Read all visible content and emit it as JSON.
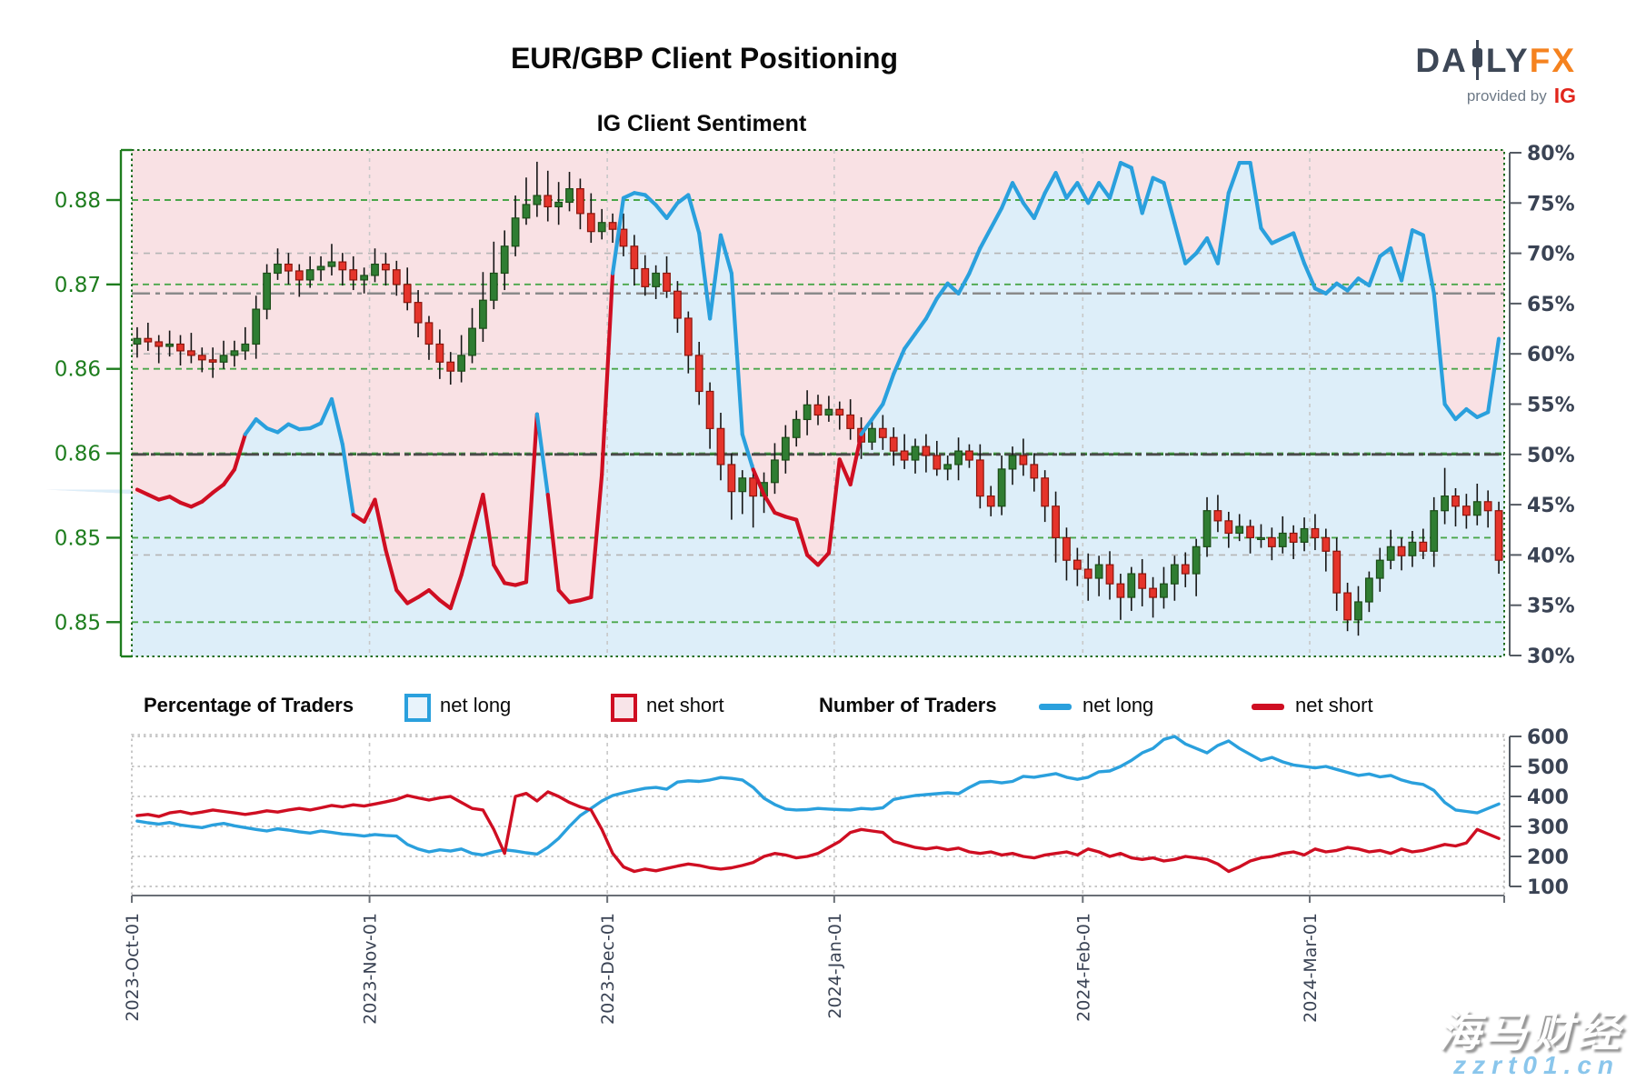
{
  "header": {
    "title": "EUR/GBP Client Positioning",
    "subtitle": "IG Client Sentiment"
  },
  "logo": {
    "part1": "DA",
    "part2": "LY",
    "part3": "FX",
    "provided_by": "provided by",
    "ig": "IG"
  },
  "legend": {
    "pct_title": "Percentage of Traders",
    "num_title": "Number of Traders",
    "long_label": "net long",
    "short_label": "net short"
  },
  "watermark": {
    "line1": "海马财经",
    "line2": "zzrt01.cn"
  },
  "colors": {
    "net_long": "#2aa0dd",
    "net_short": "#cf0e22",
    "bg_above_line_pink": "#f9e1e4",
    "bg_below_line_blue": "#ddeef9",
    "candle_up": "#2f7d32",
    "candle_up_border": "#1b4d17",
    "candle_down": "#e5342b",
    "candle_down_border": "#8c150c",
    "wick": "#151515",
    "price_axis_green": "#1e7d1e",
    "pct_axis_slate": "#3a4354",
    "grid_green": "#4aa64a",
    "grid_gray": "#b5b5b5",
    "ref_dark": "#4a4a4a",
    "ref_gray": "#8a8a8a",
    "logo_slate": "#3d4756",
    "logo_orange": "#f5821f",
    "ig_red": "#e1251b"
  },
  "chart_data": [
    {
      "type": "candlestick+line",
      "title": "IG Client Sentiment",
      "x_axis": {
        "tick_labels": [
          "2023-Oct-01",
          "2023-Nov-01",
          "2023-Dec-01",
          "2024-Jan-01",
          "2024-Feb-01",
          "2024-Mar-01"
        ],
        "tick_day_index": [
          0,
          22,
          44,
          65,
          88,
          109
        ],
        "n_points": 127
      },
      "price_axis": {
        "side": "left",
        "tick_labels": [
          "0.88",
          "0.87",
          "0.86",
          "0.86",
          "0.85",
          "0.85"
        ],
        "tick_values": [
          0.88,
          0.8725,
          0.865,
          0.8575,
          0.85,
          0.8425
        ]
      },
      "pct_axis": {
        "side": "right",
        "tick_values": [
          80,
          75,
          70,
          65,
          60,
          55,
          50,
          45,
          40,
          35,
          30
        ],
        "unit": "%",
        "gray_grid_at": [
          70,
          60,
          40
        ]
      },
      "ref_lines": {
        "pct_50": 50,
        "price_dashdot": 0.8717
      },
      "legend_note": "line colored blue when net-long >= 50%, red when below; area above line pink, below light blue",
      "candles": {
        "first_open": 0.8672,
        "close": [
          0.8677,
          0.8674,
          0.867,
          0.8672,
          0.8666,
          0.8662,
          0.8658,
          0.8656,
          0.8662,
          0.8666,
          0.8672,
          0.8703,
          0.8735,
          0.8743,
          0.8737,
          0.8729,
          0.8738,
          0.8741,
          0.8745,
          0.8738,
          0.8729,
          0.8733,
          0.8743,
          0.8738,
          0.8725,
          0.8709,
          0.8691,
          0.8672,
          0.8656,
          0.8648,
          0.8662,
          0.8686,
          0.8711,
          0.8735,
          0.8759,
          0.8784,
          0.8796,
          0.8804,
          0.8794,
          0.8798,
          0.881,
          0.8788,
          0.8772,
          0.878,
          0.8774,
          0.8759,
          0.8739,
          0.8723,
          0.8735,
          0.8719,
          0.8695,
          0.8662,
          0.863,
          0.8597,
          0.8565,
          0.8541,
          0.8553,
          0.8537,
          0.8549,
          0.8569,
          0.8589,
          0.8605,
          0.8618,
          0.8609,
          0.8614,
          0.8609,
          0.8597,
          0.8585,
          0.8597,
          0.8589,
          0.8577,
          0.8569,
          0.8581,
          0.8573,
          0.8561,
          0.8565,
          0.8577,
          0.8569,
          0.8537,
          0.8528,
          0.8561,
          0.8573,
          0.8565,
          0.8553,
          0.8528,
          0.85,
          0.848,
          0.8472,
          0.8464,
          0.8476,
          0.8459,
          0.8447,
          0.8468,
          0.8455,
          0.8447,
          0.8459,
          0.8476,
          0.8468,
          0.8492,
          0.8524,
          0.8515,
          0.8504,
          0.851,
          0.85,
          0.85,
          0.8492,
          0.8504,
          0.8496,
          0.8508,
          0.85,
          0.8488,
          0.8451,
          0.8427,
          0.8443,
          0.8464,
          0.848,
          0.8492,
          0.8484,
          0.8496,
          0.8488,
          0.8524,
          0.8537,
          0.8528,
          0.852,
          0.8532,
          0.8524,
          0.848
        ],
        "wick_up_e4": [
          10,
          14,
          6,
          12,
          8,
          16,
          7,
          11,
          13,
          9,
          15,
          12,
          8,
          14,
          10,
          6,
          12,
          9,
          16,
          8,
          12,
          7,
          14,
          10,
          8,
          15,
          11,
          6,
          13,
          9,
          18,
          18,
          25,
          28,
          14,
          20,
          24,
          30,
          22,
          18,
          15,
          9,
          18,
          12,
          8,
          14,
          10,
          12,
          7,
          15,
          9,
          6,
          12,
          8,
          14,
          10,
          7,
          12,
          9,
          15,
          11,
          8,
          13,
          9,
          12,
          7,
          14,
          10,
          8,
          12,
          9,
          15,
          7,
          11,
          13,
          8,
          12,
          6,
          14,
          9,
          12,
          8,
          15,
          10,
          7,
          13,
          9,
          11,
          14,
          8,
          12,
          9,
          6,
          13,
          10,
          15,
          8,
          11,
          7,
          12,
          14,
          8,
          11,
          6,
          12,
          9,
          15,
          7,
          10,
          13,
          8,
          12,
          9,
          14,
          6,
          11,
          15,
          8,
          10,
          12,
          12,
          25,
          7,
          11,
          16,
          10,
          8
        ],
        "wick_dn_e4": [
          12,
          8,
          15,
          9,
          13,
          7,
          11,
          14,
          6,
          10,
          8,
          13,
          9,
          6,
          12,
          15,
          7,
          10,
          8,
          14,
          9,
          12,
          6,
          14,
          10,
          7,
          13,
          14,
          15,
          12,
          10,
          7,
          12,
          8,
          15,
          9,
          6,
          11,
          13,
          16,
          8,
          14,
          10,
          7,
          12,
          9,
          15,
          8,
          11,
          6,
          13,
          16,
          12,
          18,
          14,
          25,
          20,
          28,
          15,
          10,
          12,
          8,
          14,
          9,
          6,
          13,
          10,
          15,
          7,
          11,
          13,
          8,
          12,
          15,
          6,
          10,
          14,
          7,
          11,
          9,
          8,
          14,
          10,
          12,
          14,
          22,
          18,
          15,
          20,
          16,
          14,
          20,
          12,
          16,
          18,
          10,
          15,
          12,
          20,
          9,
          10,
          13,
          7,
          14,
          9,
          12,
          6,
          15,
          8,
          11,
          18,
          16,
          10,
          14,
          9,
          12,
          8,
          13,
          10,
          7,
          14,
          12,
          18,
          12,
          9,
          15,
          12
        ]
      },
      "sentiment_net_long_pct": [
        46.5,
        46,
        45.5,
        45.8,
        45.2,
        44.8,
        45.3,
        46.2,
        47,
        48.5,
        52,
        53.5,
        52.6,
        52.2,
        53,
        52.5,
        52.6,
        53.1,
        55.5,
        51,
        44,
        43.3,
        45.5,
        40.5,
        36.5,
        35.2,
        35.8,
        36.5,
        35.5,
        34.7,
        38,
        42,
        46,
        39,
        37.2,
        37,
        37.3,
        54,
        46,
        36.5,
        35.3,
        35.5,
        35.8,
        48,
        68,
        75.5,
        76,
        75.8,
        74.8,
        73.5,
        75,
        75.8,
        72,
        63.5,
        71.8,
        68,
        52,
        48.5,
        46,
        44.2,
        43.8,
        43.5,
        40,
        39,
        40.2,
        49.5,
        47,
        52,
        53.5,
        55,
        58,
        60.5,
        62,
        63.5,
        65.5,
        67,
        66,
        68,
        70.5,
        72.5,
        74.5,
        77,
        75,
        73.5,
        76,
        78,
        75.5,
        77,
        75,
        77,
        75.5,
        79,
        78.5,
        74,
        77.5,
        77,
        73,
        69,
        70,
        71.5,
        69,
        76,
        79,
        79,
        72.5,
        71,
        71.5,
        72,
        69,
        66.5,
        66,
        67,
        66.3,
        67.5,
        66.8,
        69.7,
        70.5,
        67.3,
        72.3,
        71.8,
        66,
        55,
        53.5,
        54.5,
        53.7,
        54.2,
        61.5
      ]
    },
    {
      "type": "line",
      "title": "Number of Traders",
      "x_axis": {
        "tick_labels": [
          "2023-Oct-01",
          "2023-Nov-01",
          "2023-Dec-01",
          "2024-Jan-01",
          "2024-Feb-01",
          "2024-Mar-01"
        ],
        "tick_day_index": [
          0,
          22,
          44,
          65,
          88,
          109
        ],
        "n_points": 127
      },
      "y_axis": {
        "side": "right",
        "tick_values": [
          600,
          500,
          400,
          300,
          200,
          100
        ]
      },
      "series": [
        {
          "name": "net long",
          "color": "#2aa0dd",
          "values": [
            318,
            312,
            308,
            313,
            305,
            300,
            296,
            305,
            310,
            302,
            296,
            290,
            285,
            292,
            288,
            282,
            278,
            285,
            280,
            275,
            272,
            268,
            273,
            270,
            268,
            240,
            225,
            215,
            222,
            218,
            225,
            210,
            205,
            215,
            222,
            218,
            212,
            208,
            230,
            260,
            300,
            336,
            360,
            385,
            403,
            412,
            420,
            427,
            430,
            424,
            448,
            452,
            450,
            455,
            463,
            460,
            455,
            430,
            394,
            373,
            358,
            355,
            356,
            360,
            358,
            356,
            355,
            360,
            358,
            362,
            390,
            397,
            403,
            406,
            409,
            412,
            409,
            430,
            448,
            450,
            445,
            450,
            467,
            464,
            470,
            476,
            464,
            457,
            464,
            482,
            485,
            500,
            520,
            545,
            560,
            590,
            600,
            575,
            560,
            545,
            570,
            585,
            560,
            540,
            520,
            530,
            515,
            505,
            500,
            495,
            500,
            490,
            480,
            470,
            475,
            465,
            470,
            455,
            445,
            440,
            420,
            380,
            355,
            350,
            345,
            360,
            375
          ]
        },
        {
          "name": "net short",
          "color": "#cf0e22",
          "values": [
            336,
            340,
            333,
            345,
            350,
            342,
            348,
            355,
            350,
            345,
            340,
            345,
            352,
            348,
            355,
            360,
            355,
            362,
            370,
            365,
            372,
            368,
            375,
            382,
            390,
            403,
            395,
            388,
            395,
            400,
            380,
            360,
            355,
            290,
            210,
            400,
            410,
            385,
            415,
            400,
            380,
            365,
            355,
            290,
            210,
            165,
            150,
            158,
            152,
            160,
            168,
            175,
            170,
            162,
            158,
            162,
            170,
            180,
            200,
            210,
            205,
            195,
            200,
            210,
            230,
            250,
            280,
            290,
            285,
            280,
            250,
            240,
            230,
            225,
            230,
            222,
            228,
            215,
            210,
            215,
            205,
            210,
            200,
            195,
            205,
            210,
            215,
            205,
            225,
            215,
            200,
            210,
            195,
            190,
            195,
            185,
            190,
            200,
            195,
            190,
            175,
            150,
            165,
            185,
            195,
            200,
            210,
            215,
            205,
            225,
            215,
            220,
            230,
            225,
            215,
            220,
            210,
            225,
            215,
            220,
            230,
            240,
            235,
            245,
            290,
            275,
            260
          ]
        }
      ]
    }
  ]
}
